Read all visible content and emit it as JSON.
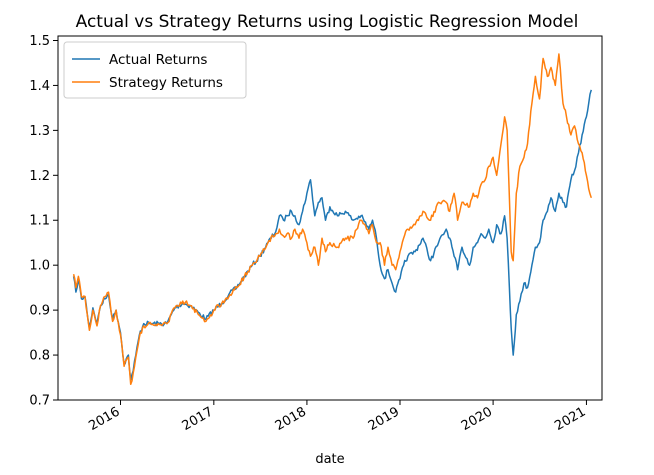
{
  "chart_data": {
    "type": "line",
    "title": "Actual vs Strategy Returns using Logistic Regression Model",
    "xlabel": "date",
    "ylabel": "",
    "xlim": [
      "2015-05-01",
      "2021-03-03"
    ],
    "ylim": [
      0.7,
      1.51
    ],
    "yticks": [
      0.7,
      0.8,
      0.9,
      1.0,
      1.1,
      1.2,
      1.3,
      1.4,
      1.5
    ],
    "ytick_labels": [
      "0.7",
      "0.8",
      "0.9",
      "1.0",
      "1.1",
      "1.2",
      "1.3",
      "1.4",
      "1.5"
    ],
    "xticks": [
      "2016-01-01",
      "2017-01-01",
      "2018-01-01",
      "2019-01-01",
      "2020-01-01",
      "2021-01-01"
    ],
    "xtick_labels": [
      "2016",
      "2017",
      "2018",
      "2019",
      "2020",
      "2021"
    ],
    "legend": {
      "placement": "upper-left"
    },
    "grid": false,
    "series": [
      {
        "name": "Actual Returns",
        "color": "#1f77b4",
        "points": [
          [
            "2015-07-01",
            0.975
          ],
          [
            "2015-07-10",
            0.94
          ],
          [
            "2015-07-20",
            0.97
          ],
          [
            "2015-08-01",
            0.925
          ],
          [
            "2015-08-15",
            0.93
          ],
          [
            "2015-09-01",
            0.86
          ],
          [
            "2015-09-15",
            0.905
          ],
          [
            "2015-10-01",
            0.87
          ],
          [
            "2015-10-15",
            0.91
          ],
          [
            "2015-11-01",
            0.925
          ],
          [
            "2015-11-15",
            0.935
          ],
          [
            "2015-12-01",
            0.88
          ],
          [
            "2015-12-15",
            0.9
          ],
          [
            "2016-01-01",
            0.85
          ],
          [
            "2016-01-15",
            0.78
          ],
          [
            "2016-02-01",
            0.8
          ],
          [
            "2016-02-10",
            0.745
          ],
          [
            "2016-02-20",
            0.765
          ],
          [
            "2016-03-01",
            0.8
          ],
          [
            "2016-03-15",
            0.845
          ],
          [
            "2016-04-01",
            0.87
          ],
          [
            "2016-05-01",
            0.87
          ],
          [
            "2016-06-01",
            0.87
          ],
          [
            "2016-07-01",
            0.87
          ],
          [
            "2016-08-01",
            0.905
          ],
          [
            "2016-09-01",
            0.915
          ],
          [
            "2016-10-01",
            0.91
          ],
          [
            "2016-11-01",
            0.895
          ],
          [
            "2016-12-01",
            0.88
          ],
          [
            "2017-01-01",
            0.9
          ],
          [
            "2017-02-01",
            0.915
          ],
          [
            "2017-03-01",
            0.935
          ],
          [
            "2017-04-01",
            0.95
          ],
          [
            "2017-05-01",
            0.975
          ],
          [
            "2017-06-01",
            1.0
          ],
          [
            "2017-07-01",
            1.02
          ],
          [
            "2017-08-01",
            1.05
          ],
          [
            "2017-09-01",
            1.075
          ],
          [
            "2017-09-15",
            1.11
          ],
          [
            "2017-10-01",
            1.1
          ],
          [
            "2017-10-15",
            1.11
          ],
          [
            "2017-11-01",
            1.12
          ],
          [
            "2017-11-15",
            1.11
          ],
          [
            "2017-12-01",
            1.09
          ],
          [
            "2017-12-15",
            1.12
          ],
          [
            "2018-01-01",
            1.16
          ],
          [
            "2018-01-15",
            1.19
          ],
          [
            "2018-02-01",
            1.11
          ],
          [
            "2018-02-15",
            1.14
          ],
          [
            "2018-03-01",
            1.15
          ],
          [
            "2018-03-15",
            1.1
          ],
          [
            "2018-04-01",
            1.13
          ],
          [
            "2018-05-01",
            1.11
          ],
          [
            "2018-06-01",
            1.12
          ],
          [
            "2018-07-01",
            1.1
          ],
          [
            "2018-08-01",
            1.11
          ],
          [
            "2018-09-01",
            1.08
          ],
          [
            "2018-09-15",
            1.1
          ],
          [
            "2018-10-01",
            1.06
          ],
          [
            "2018-10-15",
            1.0
          ],
          [
            "2018-11-01",
            0.97
          ],
          [
            "2018-11-15",
            0.99
          ],
          [
            "2018-12-01",
            0.96
          ],
          [
            "2018-12-15",
            0.94
          ],
          [
            "2019-01-01",
            0.97
          ],
          [
            "2019-01-15",
            1.0
          ],
          [
            "2019-02-01",
            1.02
          ],
          [
            "2019-03-01",
            1.03
          ],
          [
            "2019-04-01",
            1.06
          ],
          [
            "2019-05-01",
            1.01
          ],
          [
            "2019-06-01",
            1.05
          ],
          [
            "2019-07-01",
            1.08
          ],
          [
            "2019-07-15",
            1.06
          ],
          [
            "2019-08-01",
            1.02
          ],
          [
            "2019-08-15",
            0.99
          ],
          [
            "2019-09-01",
            1.04
          ],
          [
            "2019-10-01",
            1.0
          ],
          [
            "2019-10-15",
            1.04
          ],
          [
            "2019-11-01",
            1.05
          ],
          [
            "2019-11-15",
            1.07
          ],
          [
            "2019-12-01",
            1.06
          ],
          [
            "2019-12-15",
            1.08
          ],
          [
            "2020-01-01",
            1.05
          ],
          [
            "2020-01-15",
            1.09
          ],
          [
            "2020-02-01",
            1.07
          ],
          [
            "2020-02-15",
            1.11
          ],
          [
            "2020-02-25",
            1.06
          ],
          [
            "2020-03-05",
            0.95
          ],
          [
            "2020-03-12",
            0.86
          ],
          [
            "2020-03-20",
            0.8
          ],
          [
            "2020-04-01",
            0.89
          ],
          [
            "2020-04-15",
            0.92
          ],
          [
            "2020-05-01",
            0.96
          ],
          [
            "2020-05-15",
            0.95
          ],
          [
            "2020-06-01",
            1.0
          ],
          [
            "2020-06-15",
            1.04
          ],
          [
            "2020-07-01",
            1.05
          ],
          [
            "2020-07-15",
            1.1
          ],
          [
            "2020-08-01",
            1.12
          ],
          [
            "2020-08-15",
            1.15
          ],
          [
            "2020-09-01",
            1.12
          ],
          [
            "2020-09-15",
            1.16
          ],
          [
            "2020-10-01",
            1.14
          ],
          [
            "2020-10-15",
            1.13
          ],
          [
            "2020-11-01",
            1.19
          ],
          [
            "2020-11-15",
            1.21
          ],
          [
            "2020-12-01",
            1.25
          ],
          [
            "2020-12-15",
            1.29
          ],
          [
            "2021-01-01",
            1.33
          ],
          [
            "2021-01-10",
            1.36
          ],
          [
            "2021-01-20",
            1.39
          ]
        ]
      },
      {
        "name": "Strategy Returns",
        "color": "#ff7f0e",
        "points": [
          [
            "2015-07-01",
            0.98
          ],
          [
            "2015-07-10",
            0.95
          ],
          [
            "2015-07-20",
            0.975
          ],
          [
            "2015-08-01",
            0.93
          ],
          [
            "2015-08-15",
            0.93
          ],
          [
            "2015-09-01",
            0.855
          ],
          [
            "2015-09-15",
            0.9
          ],
          [
            "2015-10-01",
            0.865
          ],
          [
            "2015-10-15",
            0.91
          ],
          [
            "2015-11-01",
            0.93
          ],
          [
            "2015-11-15",
            0.94
          ],
          [
            "2015-12-01",
            0.875
          ],
          [
            "2015-12-15",
            0.9
          ],
          [
            "2016-01-01",
            0.845
          ],
          [
            "2016-01-15",
            0.775
          ],
          [
            "2016-02-01",
            0.795
          ],
          [
            "2016-02-10",
            0.735
          ],
          [
            "2016-02-20",
            0.76
          ],
          [
            "2016-03-01",
            0.795
          ],
          [
            "2016-03-15",
            0.84
          ],
          [
            "2016-04-01",
            0.865
          ],
          [
            "2016-05-01",
            0.868
          ],
          [
            "2016-06-01",
            0.868
          ],
          [
            "2016-07-01",
            0.87
          ],
          [
            "2016-08-01",
            0.905
          ],
          [
            "2016-09-01",
            0.92
          ],
          [
            "2016-10-01",
            0.91
          ],
          [
            "2016-11-01",
            0.89
          ],
          [
            "2016-12-01",
            0.875
          ],
          [
            "2017-01-01",
            0.9
          ],
          [
            "2017-02-01",
            0.915
          ],
          [
            "2017-03-01",
            0.93
          ],
          [
            "2017-04-01",
            0.95
          ],
          [
            "2017-05-01",
            0.975
          ],
          [
            "2017-06-01",
            1.0
          ],
          [
            "2017-07-01",
            1.02
          ],
          [
            "2017-08-01",
            1.05
          ],
          [
            "2017-09-01",
            1.07
          ],
          [
            "2017-09-15",
            1.08
          ],
          [
            "2017-10-01",
            1.065
          ],
          [
            "2017-10-15",
            1.07
          ],
          [
            "2017-11-01",
            1.06
          ],
          [
            "2017-11-15",
            1.08
          ],
          [
            "2017-12-01",
            1.06
          ],
          [
            "2017-12-15",
            1.08
          ],
          [
            "2018-01-01",
            1.05
          ],
          [
            "2018-01-15",
            1.02
          ],
          [
            "2018-02-01",
            1.04
          ],
          [
            "2018-02-15",
            1.0
          ],
          [
            "2018-03-01",
            1.06
          ],
          [
            "2018-03-15",
            1.03
          ],
          [
            "2018-04-01",
            1.05
          ],
          [
            "2018-05-01",
            1.04
          ],
          [
            "2018-06-01",
            1.06
          ],
          [
            "2018-07-01",
            1.06
          ],
          [
            "2018-08-01",
            1.1
          ],
          [
            "2018-09-01",
            1.07
          ],
          [
            "2018-09-15",
            1.09
          ],
          [
            "2018-10-01",
            1.05
          ],
          [
            "2018-10-15",
            1.05
          ],
          [
            "2018-11-01",
            1.0
          ],
          [
            "2018-11-15",
            1.04
          ],
          [
            "2018-12-01",
            1.0
          ],
          [
            "2018-12-15",
            0.99
          ],
          [
            "2019-01-01",
            1.03
          ],
          [
            "2019-01-15",
            1.06
          ],
          [
            "2019-02-01",
            1.08
          ],
          [
            "2019-03-01",
            1.09
          ],
          [
            "2019-04-01",
            1.12
          ],
          [
            "2019-05-01",
            1.1
          ],
          [
            "2019-06-01",
            1.14
          ],
          [
            "2019-07-01",
            1.14
          ],
          [
            "2019-07-15",
            1.12
          ],
          [
            "2019-08-01",
            1.16
          ],
          [
            "2019-08-15",
            1.1
          ],
          [
            "2019-09-01",
            1.14
          ],
          [
            "2019-10-01",
            1.13
          ],
          [
            "2019-10-15",
            1.16
          ],
          [
            "2019-11-01",
            1.15
          ],
          [
            "2019-11-15",
            1.18
          ],
          [
            "2019-12-01",
            1.19
          ],
          [
            "2019-12-15",
            1.22
          ],
          [
            "2020-01-01",
            1.24
          ],
          [
            "2020-01-15",
            1.2
          ],
          [
            "2020-02-01",
            1.27
          ],
          [
            "2020-02-15",
            1.33
          ],
          [
            "2020-02-25",
            1.3
          ],
          [
            "2020-03-05",
            1.15
          ],
          [
            "2020-03-12",
            1.03
          ],
          [
            "2020-03-20",
            1.01
          ],
          [
            "2020-04-01",
            1.16
          ],
          [
            "2020-04-15",
            1.22
          ],
          [
            "2020-05-01",
            1.24
          ],
          [
            "2020-05-15",
            1.27
          ],
          [
            "2020-06-01",
            1.36
          ],
          [
            "2020-06-15",
            1.42
          ],
          [
            "2020-07-01",
            1.37
          ],
          [
            "2020-07-15",
            1.46
          ],
          [
            "2020-08-01",
            1.42
          ],
          [
            "2020-08-15",
            1.44
          ],
          [
            "2020-09-01",
            1.4
          ],
          [
            "2020-09-15",
            1.47
          ],
          [
            "2020-10-01",
            1.36
          ],
          [
            "2020-10-15",
            1.33
          ],
          [
            "2020-11-01",
            1.29
          ],
          [
            "2020-11-15",
            1.31
          ],
          [
            "2020-12-01",
            1.27
          ],
          [
            "2020-12-15",
            1.25
          ],
          [
            "2021-01-01",
            1.2
          ],
          [
            "2021-01-10",
            1.17
          ],
          [
            "2021-01-20",
            1.15
          ]
        ]
      }
    ]
  }
}
